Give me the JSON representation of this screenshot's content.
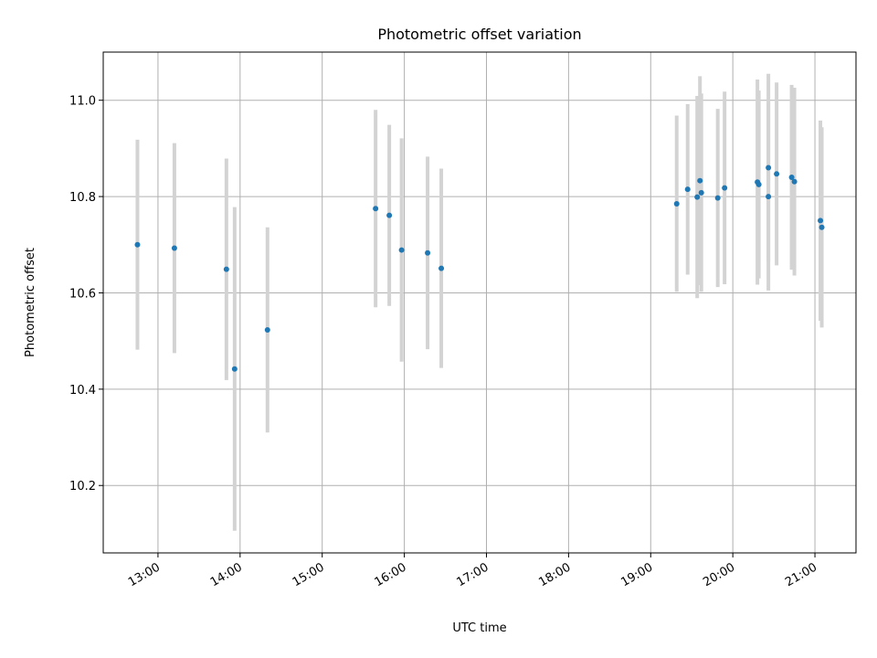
{
  "chart_data": {
    "type": "scatter",
    "title": "Photometric offset variation",
    "xlabel": "UTC time",
    "ylabel": "Photometric offset",
    "x_tick_labels": [
      "13:00",
      "14:00",
      "15:00",
      "16:00",
      "17:00",
      "18:00",
      "19:00",
      "20:00",
      "21:00"
    ],
    "y_tick_labels": [
      "10.2",
      "10.4",
      "10.6",
      "10.8",
      "11.0"
    ],
    "x_ticks": [
      "13:00",
      "14:00",
      "15:00",
      "16:00",
      "17:00",
      "18:00",
      "19:00",
      "20:00",
      "21:00"
    ],
    "y_ticks": [
      10.2,
      10.4,
      10.6,
      10.8,
      11.0
    ],
    "xlim": [
      "12:20",
      "21:30"
    ],
    "ylim": [
      10.06,
      11.1
    ],
    "grid": true,
    "point_color": "#1f77b4",
    "errorbar_color": "#d3d3d3",
    "points": [
      {
        "x": "12:45",
        "y": 10.7,
        "err": 0.218
      },
      {
        "x": "13:12",
        "y": 10.693,
        "err": 0.218
      },
      {
        "x": "13:50",
        "y": 10.649,
        "err": 0.23
      },
      {
        "x": "13:56",
        "y": 10.442,
        "err": 0.336
      },
      {
        "x": "14:20",
        "y": 10.523,
        "err": 0.213
      },
      {
        "x": "15:39",
        "y": 10.775,
        "err": 0.205
      },
      {
        "x": "15:49",
        "y": 10.761,
        "err": 0.188
      },
      {
        "x": "15:58",
        "y": 10.689,
        "err": 0.232
      },
      {
        "x": "16:17",
        "y": 10.683,
        "err": 0.2
      },
      {
        "x": "16:27",
        "y": 10.651,
        "err": 0.207
      },
      {
        "x": "19:19",
        "y": 10.785,
        "err": 0.183
      },
      {
        "x": "19:27",
        "y": 10.815,
        "err": 0.177
      },
      {
        "x": "19:34",
        "y": 10.799,
        "err": 0.21
      },
      {
        "x": "19:36",
        "y": 10.833,
        "err": 0.217
      },
      {
        "x": "19:37",
        "y": 10.808,
        "err": 0.206
      },
      {
        "x": "19:49",
        "y": 10.797,
        "err": 0.185
      },
      {
        "x": "19:54",
        "y": 10.818,
        "err": 0.2
      },
      {
        "x": "20:18",
        "y": 10.83,
        "err": 0.213
      },
      {
        "x": "20:19",
        "y": 10.825,
        "err": 0.195
      },
      {
        "x": "20:26",
        "y": 10.8,
        "err": 0.195
      },
      {
        "x": "20:26",
        "y": 10.86,
        "err": 0.195
      },
      {
        "x": "20:32",
        "y": 10.847,
        "err": 0.19
      },
      {
        "x": "20:43",
        "y": 10.84,
        "err": 0.192
      },
      {
        "x": "20:45",
        "y": 10.831,
        "err": 0.195
      },
      {
        "x": "21:04",
        "y": 10.75,
        "err": 0.208
      },
      {
        "x": "21:05",
        "y": 10.736,
        "err": 0.208
      }
    ]
  }
}
